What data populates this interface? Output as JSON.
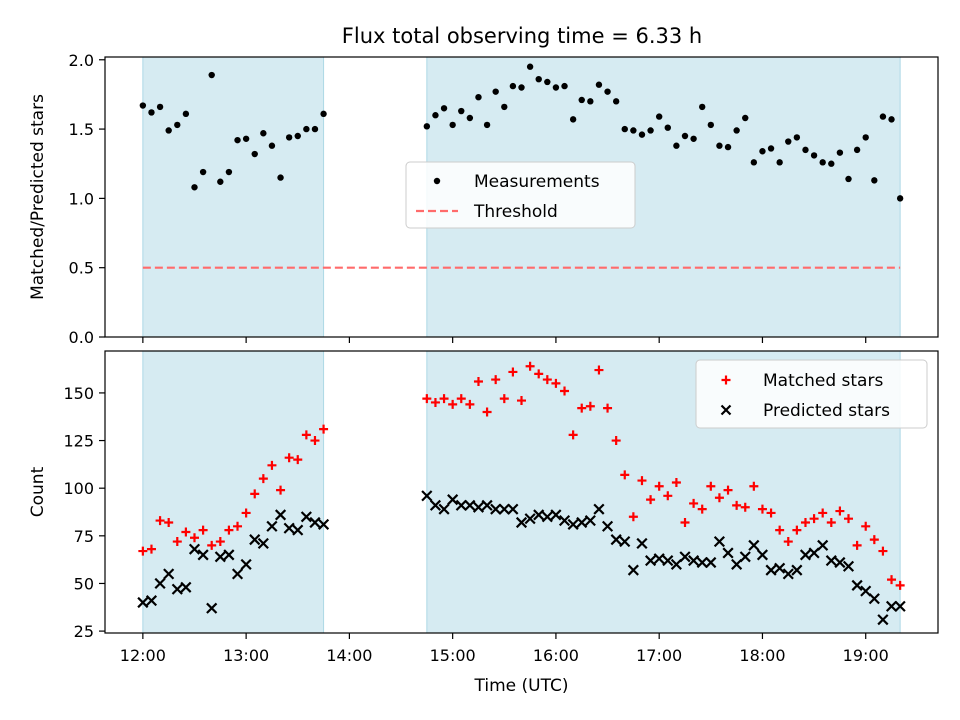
{
  "figure": {
    "title": "Flux total observing time = 6.33 h"
  },
  "colors": {
    "shade": "#add8e6",
    "measurement": "#000000",
    "threshold": "#ff6b6b",
    "matched": "#ff0000",
    "predicted": "#000000"
  },
  "chart_data": [
    {
      "type": "scatter",
      "title": "Flux total observing time = 6.33 h",
      "xlabel": "",
      "ylabel": "Matched/Predicted stars",
      "xlim": [
        "11:38",
        "19:42"
      ],
      "ylim": [
        0,
        2.02
      ],
      "yticks": [
        "0.0",
        "0.5",
        "1.0",
        "1.5",
        "2.0"
      ],
      "legend": "center",
      "shaded_intervals": [
        [
          "12:00",
          "13:45"
        ],
        [
          "14:45",
          "19:20"
        ]
      ],
      "threshold": {
        "name": "Threshold",
        "value": 0.5,
        "x_range": [
          "12:00",
          "19:20"
        ]
      },
      "series": [
        {
          "name": "Measurements",
          "marker": "dot",
          "x": [
            "12:00",
            "12:05",
            "12:10",
            "12:15",
            "12:20",
            "12:25",
            "12:30",
            "12:35",
            "12:40",
            "12:45",
            "12:50",
            "12:55",
            "13:00",
            "13:05",
            "13:10",
            "13:15",
            "13:20",
            "13:25",
            "13:30",
            "13:35",
            "13:40",
            "13:45",
            "14:45",
            "14:50",
            "14:55",
            "15:00",
            "15:05",
            "15:10",
            "15:15",
            "15:20",
            "15:25",
            "15:30",
            "15:35",
            "15:40",
            "15:45",
            "15:50",
            "15:55",
            "16:00",
            "16:05",
            "16:10",
            "16:15",
            "16:20",
            "16:25",
            "16:30",
            "16:35",
            "16:40",
            "16:45",
            "16:50",
            "16:55",
            "17:00",
            "17:05",
            "17:10",
            "17:15",
            "17:20",
            "17:25",
            "17:30",
            "17:35",
            "17:40",
            "17:45",
            "17:50",
            "17:55",
            "18:00",
            "18:05",
            "18:10",
            "18:15",
            "18:20",
            "18:25",
            "18:30",
            "18:35",
            "18:40",
            "18:45",
            "18:50",
            "18:55",
            "19:00",
            "19:05",
            "19:10",
            "19:15",
            "19:20"
          ],
          "y": [
            1.67,
            1.62,
            1.66,
            1.49,
            1.53,
            1.61,
            1.08,
            1.19,
            1.89,
            1.12,
            1.19,
            1.42,
            1.43,
            1.32,
            1.47,
            1.38,
            1.15,
            1.44,
            1.45,
            1.5,
            1.5,
            1.61,
            1.52,
            1.6,
            1.65,
            1.53,
            1.63,
            1.58,
            1.73,
            1.53,
            1.77,
            1.66,
            1.81,
            1.8,
            1.95,
            1.86,
            1.84,
            1.8,
            1.81,
            1.57,
            1.71,
            1.7,
            1.82,
            1.77,
            1.7,
            1.5,
            1.49,
            1.46,
            1.49,
            1.59,
            1.51,
            1.38,
            1.45,
            1.43,
            1.66,
            1.53,
            1.38,
            1.37,
            1.49,
            1.58,
            1.26,
            1.34,
            1.36,
            1.26,
            1.41,
            1.44,
            1.35,
            1.31,
            1.26,
            1.25,
            1.33,
            1.14,
            1.35,
            1.44,
            1.13,
            1.59,
            1.57,
            1.0
          ]
        }
      ]
    },
    {
      "type": "scatter",
      "xlabel": "Time (UTC)",
      "ylabel": "Count",
      "xlim": [
        "11:38",
        "19:42"
      ],
      "ylim": [
        24,
        172
      ],
      "xticks": [
        "12:00",
        "13:00",
        "14:00",
        "15:00",
        "16:00",
        "17:00",
        "18:00",
        "19:00"
      ],
      "yticks": [
        "25",
        "50",
        "75",
        "100",
        "125",
        "150"
      ],
      "legend": "top-right",
      "shaded_intervals": [
        [
          "12:00",
          "13:45"
        ],
        [
          "14:45",
          "19:20"
        ]
      ],
      "series": [
        {
          "name": "Matched stars",
          "marker": "plus",
          "x": [
            "12:00",
            "12:05",
            "12:10",
            "12:15",
            "12:20",
            "12:25",
            "12:30",
            "12:35",
            "12:40",
            "12:45",
            "12:50",
            "12:55",
            "13:00",
            "13:05",
            "13:10",
            "13:15",
            "13:20",
            "13:25",
            "13:30",
            "13:35",
            "13:40",
            "13:45",
            "14:45",
            "14:50",
            "14:55",
            "15:00",
            "15:05",
            "15:10",
            "15:15",
            "15:20",
            "15:25",
            "15:30",
            "15:35",
            "15:40",
            "15:45",
            "15:50",
            "15:55",
            "16:00",
            "16:05",
            "16:10",
            "16:15",
            "16:20",
            "16:25",
            "16:30",
            "16:35",
            "16:40",
            "16:45",
            "16:50",
            "16:55",
            "17:00",
            "17:05",
            "17:10",
            "17:15",
            "17:20",
            "17:25",
            "17:30",
            "17:35",
            "17:40",
            "17:45",
            "17:50",
            "17:55",
            "18:00",
            "18:05",
            "18:10",
            "18:15",
            "18:20",
            "18:25",
            "18:30",
            "18:35",
            "18:40",
            "18:45",
            "18:50",
            "18:55",
            "19:00",
            "19:05",
            "19:10",
            "19:15",
            "19:20"
          ],
          "y": [
            67,
            68,
            83,
            82,
            72,
            77,
            74,
            78,
            70,
            72,
            78,
            80,
            87,
            97,
            105,
            112,
            99,
            116,
            115,
            128,
            125,
            131,
            147,
            145,
            147,
            144,
            147,
            144,
            156,
            140,
            157,
            147,
            161,
            146,
            164,
            160,
            157,
            155,
            151,
            128,
            142,
            143,
            162,
            142,
            125,
            107,
            85,
            104,
            94,
            101,
            96,
            103,
            82,
            92,
            89,
            101,
            95,
            99,
            91,
            90,
            101,
            89,
            87,
            78,
            72,
            78,
            82,
            84,
            87,
            82,
            88,
            84,
            70,
            80,
            73,
            67,
            52,
            49
          ]
        },
        {
          "name": "Predicted stars",
          "marker": "x",
          "x": [
            "12:00",
            "12:05",
            "12:10",
            "12:15",
            "12:20",
            "12:25",
            "12:30",
            "12:35",
            "12:40",
            "12:45",
            "12:50",
            "12:55",
            "13:00",
            "13:05",
            "13:10",
            "13:15",
            "13:20",
            "13:25",
            "13:30",
            "13:35",
            "13:40",
            "13:45",
            "14:45",
            "14:50",
            "14:55",
            "15:00",
            "15:05",
            "15:10",
            "15:15",
            "15:20",
            "15:25",
            "15:30",
            "15:35",
            "15:40",
            "15:45",
            "15:50",
            "15:55",
            "16:00",
            "16:05",
            "16:10",
            "16:15",
            "16:20",
            "16:25",
            "16:30",
            "16:35",
            "16:40",
            "16:45",
            "16:50",
            "16:55",
            "17:00",
            "17:05",
            "17:10",
            "17:15",
            "17:20",
            "17:25",
            "17:30",
            "17:35",
            "17:40",
            "17:45",
            "17:50",
            "17:55",
            "18:00",
            "18:05",
            "18:10",
            "18:15",
            "18:20",
            "18:25",
            "18:30",
            "18:35",
            "18:40",
            "18:45",
            "18:50",
            "18:55",
            "19:00",
            "19:05",
            "19:10",
            "19:15",
            "19:20"
          ],
          "y": [
            40,
            41,
            50,
            55,
            47,
            48,
            68,
            65,
            37,
            64,
            65,
            55,
            60,
            73,
            71,
            80,
            86,
            79,
            78,
            85,
            82,
            81,
            96,
            91,
            89,
            94,
            91,
            91,
            90,
            91,
            89,
            89,
            89,
            82,
            84,
            86,
            85,
            86,
            83,
            81,
            82,
            83,
            89,
            80,
            73,
            72,
            57,
            71,
            62,
            63,
            62,
            60,
            64,
            62,
            61,
            61,
            72,
            66,
            60,
            64,
            70,
            65,
            57,
            58,
            55,
            57,
            65,
            66,
            70,
            62,
            61,
            59,
            49,
            46,
            42,
            31,
            38,
            38
          ]
        }
      ]
    }
  ]
}
